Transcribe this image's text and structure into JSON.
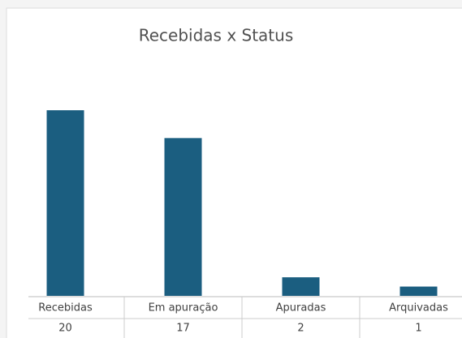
{
  "chart_data": {
    "type": "bar",
    "title": "Recebidas x Status",
    "categories": [
      "Recebidas",
      "Em apuração",
      "Apuradas",
      "Arquivadas"
    ],
    "values": [
      20,
      17,
      2,
      1
    ],
    "color": "#1b5e80"
  }
}
